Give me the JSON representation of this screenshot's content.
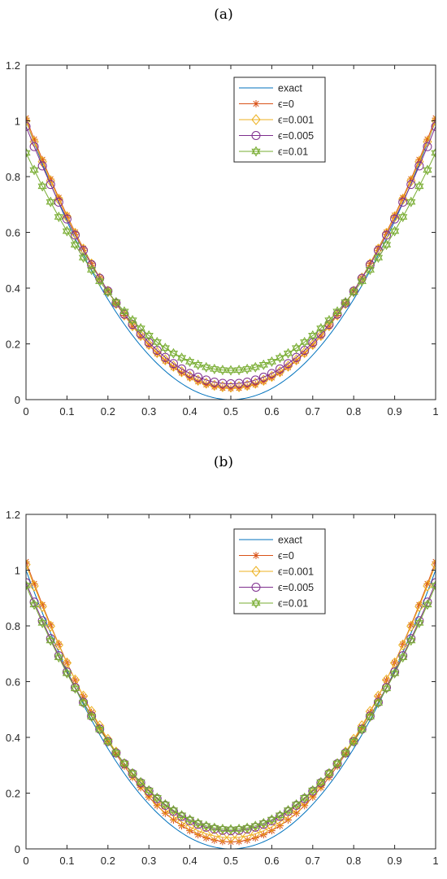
{
  "panels": [
    {
      "label": "(a)"
    },
    {
      "label": "(b)"
    }
  ],
  "chart_data": [
    {
      "type": "line",
      "title": "(a)",
      "xlabel": "",
      "ylabel": "",
      "xlim": [
        0,
        1
      ],
      "ylim": [
        0,
        1.2
      ],
      "xticks": [
        "0",
        "0.1",
        "0.2",
        "0.3",
        "0.4",
        "0.5",
        "0.6",
        "0.7",
        "0.8",
        "0.9",
        "1"
      ],
      "yticks": [
        "0",
        "0.2",
        "0.4",
        "0.6",
        "0.8",
        "1",
        "1.2"
      ],
      "grid": false,
      "legend": "top-right",
      "x_spacing": 0.02,
      "series": [
        {
          "name": "exact",
          "color": "#0072bd",
          "marker": "none",
          "exact_curve": true
        },
        {
          "name": "ϵ=0",
          "color": "#d95319",
          "marker": "star",
          "endpoint": 1.01,
          "minimum": 0.04
        },
        {
          "name": "ϵ=0.001",
          "color": "#edb120",
          "marker": "diamond",
          "endpoint": 1.0,
          "minimum": 0.045
        },
        {
          "name": "ϵ=0.005",
          "color": "#7e2f8e",
          "marker": "circle",
          "endpoint": 0.98,
          "minimum": 0.057
        },
        {
          "name": "ϵ=0.01",
          "color": "#77ac30",
          "marker": "hexagram",
          "endpoint": 0.885,
          "minimum": 0.105
        }
      ]
    },
    {
      "type": "line",
      "title": "(b)",
      "xlabel": "",
      "ylabel": "",
      "xlim": [
        0,
        1
      ],
      "ylim": [
        0,
        1.2
      ],
      "xticks": [
        "0",
        "0.1",
        "0.2",
        "0.3",
        "0.4",
        "0.5",
        "0.6",
        "0.7",
        "0.8",
        "0.9",
        "1"
      ],
      "yticks": [
        "0",
        "0.2",
        "0.4",
        "0.6",
        "0.8",
        "1",
        "1.2"
      ],
      "grid": false,
      "legend": "top-right",
      "x_spacing": 0.02,
      "series": [
        {
          "name": "exact",
          "color": "#0072bd",
          "marker": "none",
          "exact_curve": true
        },
        {
          "name": "ϵ=0",
          "color": "#d95319",
          "marker": "star",
          "endpoint": 1.03,
          "minimum": 0.025
        },
        {
          "name": "ϵ=0.001",
          "color": "#edb120",
          "marker": "diamond",
          "endpoint": 1.02,
          "minimum": 0.04
        },
        {
          "name": "ϵ=0.005",
          "color": "#7e2f8e",
          "marker": "circle",
          "endpoint": 0.955,
          "minimum": 0.065
        },
        {
          "name": "ϵ=0.01",
          "color": "#77ac30",
          "marker": "hexagram",
          "endpoint": 0.945,
          "minimum": 0.07
        }
      ]
    }
  ]
}
